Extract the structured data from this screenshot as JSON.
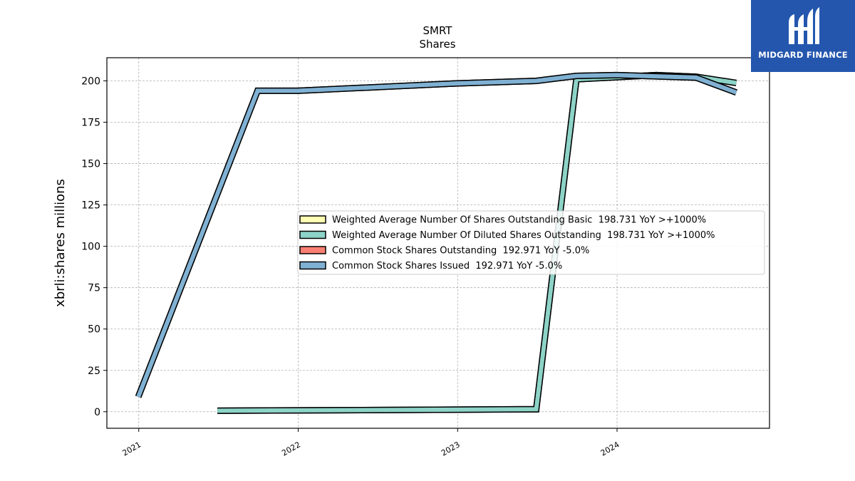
{
  "brand": {
    "name": "MIDGARD FINANCE",
    "logo_icon": "midgard-monogram-icon",
    "color": "#2456ae"
  },
  "chart_data": {
    "type": "line",
    "title": "SMRT",
    "subtitle": "Shares",
    "xlabel": "",
    "ylabel": "xbrli:shares millions",
    "x_ticks": [
      "2021",
      "2022",
      "2023",
      "2024"
    ],
    "y_ticks": [
      0,
      25,
      50,
      75,
      100,
      125,
      150,
      175,
      200
    ],
    "xlim": [
      "2020-10-20",
      "2024-12-15"
    ],
    "ylim": [
      -10,
      214
    ],
    "grid": true,
    "legend_position": "center-right",
    "series": [
      {
        "name": "Weighted Average Number Of Shares Outstanding Basic",
        "legend_label": "Weighted Average Number Of Shares Outstanding Basic  198.731 YoY >+1000%",
        "color": "#ffffb3",
        "points": [
          [
            "2021-06-30",
            0.6
          ],
          [
            "2023-06-30",
            1.5
          ],
          [
            "2023-09-30",
            201.0
          ],
          [
            "2024-03-31",
            203.5
          ],
          [
            "2024-06-30",
            202.5
          ],
          [
            "2024-09-30",
            198.731
          ]
        ]
      },
      {
        "name": "Weighted Average Number Of Diluted Shares Outstanding",
        "legend_label": "Weighted Average Number Of Diluted Shares Outstanding  198.731 YoY >+1000%",
        "color": "#8dd3c7",
        "points": [
          [
            "2021-06-30",
            0.6
          ],
          [
            "2023-06-30",
            1.5
          ],
          [
            "2023-09-30",
            201.0
          ],
          [
            "2024-03-31",
            203.5
          ],
          [
            "2024-06-30",
            202.5
          ],
          [
            "2024-09-30",
            198.731
          ]
        ]
      },
      {
        "name": "Common Stock Shares Outstanding",
        "legend_label": "Common Stock Shares Outstanding  192.971 YoY -5.0%",
        "color": "#fb8072",
        "points": [
          [
            "2020-12-31",
            9.0
          ],
          [
            "2021-09-30",
            194.0
          ],
          [
            "2021-12-31",
            194.0
          ],
          [
            "2022-12-31",
            198.5
          ],
          [
            "2023-06-30",
            200.0
          ],
          [
            "2023-09-30",
            203.0
          ],
          [
            "2023-12-31",
            203.5
          ],
          [
            "2024-06-30",
            202.0
          ],
          [
            "2024-09-30",
            192.971
          ]
        ]
      },
      {
        "name": "Common Stock Shares Issued",
        "legend_label": "Common Stock Shares Issued  192.971 YoY -5.0%",
        "color": "#80b1d3",
        "points": [
          [
            "2020-12-31",
            9.0
          ],
          [
            "2021-09-30",
            194.0
          ],
          [
            "2021-12-31",
            194.0
          ],
          [
            "2022-12-31",
            198.5
          ],
          [
            "2023-06-30",
            200.0
          ],
          [
            "2023-09-30",
            203.0
          ],
          [
            "2023-12-31",
            203.5
          ],
          [
            "2024-06-30",
            202.0
          ],
          [
            "2024-09-30",
            192.971
          ]
        ]
      }
    ]
  }
}
